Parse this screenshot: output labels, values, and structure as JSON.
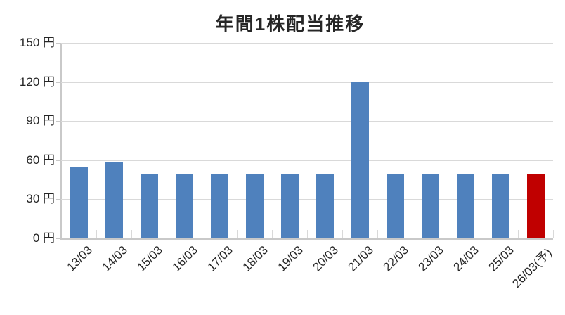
{
  "chart_data": {
    "type": "bar",
    "title": "年間1株配当推移",
    "categories": [
      "13/03",
      "14/03",
      "15/03",
      "16/03",
      "17/03",
      "18/03",
      "19/03",
      "20/03",
      "21/03",
      "22/03",
      "23/03",
      "24/03",
      "25/03",
      "26/03(予)"
    ],
    "values": [
      55,
      59,
      49,
      49,
      49,
      49,
      49,
      49,
      120,
      49,
      49,
      49,
      49,
      49
    ],
    "unit": "円",
    "ylim": [
      0,
      150
    ],
    "ytick_step": 30,
    "ytick_labels": [
      "0 円",
      "30 円",
      "60 円",
      "90 円",
      "120 円",
      "150 円"
    ],
    "xlabel": "",
    "ylabel": "",
    "grid": true,
    "legend": "none",
    "forecast_index": 13,
    "colors": {
      "bar": "#4F81BD",
      "forecast_bar": "#C00000",
      "gridline": "#D9D9D9",
      "axis": "#C9C9C9",
      "text": "#262626"
    }
  }
}
